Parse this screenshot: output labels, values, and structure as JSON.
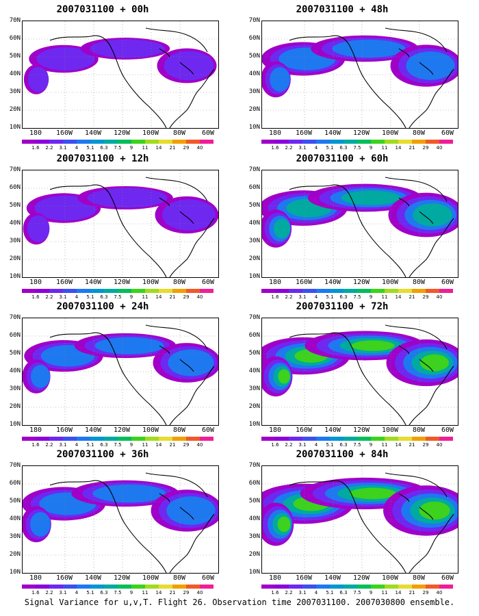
{
  "panels": [
    {
      "title": "2007031100 + 00h",
      "intensity": 0.25
    },
    {
      "title": "2007031100 + 48h",
      "intensity": 0.55
    },
    {
      "title": "2007031100 + 12h",
      "intensity": 0.35
    },
    {
      "title": "2007031100 + 60h",
      "intensity": 0.65
    },
    {
      "title": "2007031100 + 24h",
      "intensity": 0.45
    },
    {
      "title": "2007031100 + 72h",
      "intensity": 0.75
    },
    {
      "title": "2007031100 + 36h",
      "intensity": 0.55
    },
    {
      "title": "2007031100 + 84h",
      "intensity": 0.9
    }
  ],
  "axes": {
    "lat_labels": [
      "70N",
      "60N",
      "50N",
      "40N",
      "30N",
      "20N",
      "10N"
    ],
    "lon_labels": [
      "180",
      "160W",
      "140W",
      "120W",
      "100W",
      "80W",
      "60W"
    ]
  },
  "colorbar": {
    "labels": [
      "1.6",
      "2.2",
      "3.1",
      "4",
      "5.1",
      "6.3",
      "7.5",
      "9",
      "11",
      "14",
      "21",
      "29",
      "40"
    ],
    "colors": [
      "#a000c8",
      "#8c00dc",
      "#6e28f0",
      "#3c50f0",
      "#1e78f0",
      "#0096d2",
      "#00aaa0",
      "#00be5a",
      "#3cd21e",
      "#a0dc1e",
      "#e6dc32",
      "#f0a000",
      "#f05a28",
      "#f01e96"
    ]
  },
  "caption": "Signal Variance for u,v,T. Flight 26. Observation time 2007031100. 2007030800 ensemble."
}
